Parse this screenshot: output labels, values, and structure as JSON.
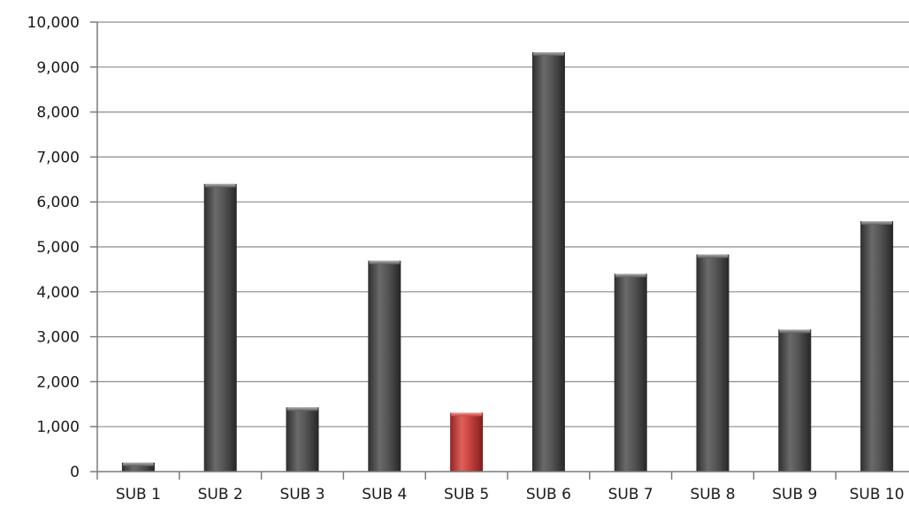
{
  "chart_data": {
    "type": "bar",
    "title": "",
    "xlabel": "",
    "ylabel": "",
    "categories": [
      "SUB 1",
      "SUB 2",
      "SUB 3",
      "SUB 4",
      "SUB 5",
      "SUB 6",
      "SUB 7",
      "SUB 8",
      "SUB 9",
      "SUB 10"
    ],
    "values": [
      200,
      6400,
      1430,
      4690,
      1310,
      9330,
      4400,
      4830,
      3160,
      5570
    ],
    "ylim": [
      0,
      10000
    ],
    "yticks": [
      0,
      1000,
      2000,
      3000,
      4000,
      5000,
      6000,
      7000,
      8000,
      9000,
      10000
    ],
    "ytick_labels": [
      "0",
      "1,000",
      "2,000",
      "3,000",
      "4,000",
      "5,000",
      "6,000",
      "7,000",
      "8,000",
      "9,000",
      "10,000"
    ],
    "grid": true,
    "legend": "none",
    "bar_color": "#4d4d4d",
    "highlight_color": "#c8423f",
    "highlight_index": 4
  }
}
